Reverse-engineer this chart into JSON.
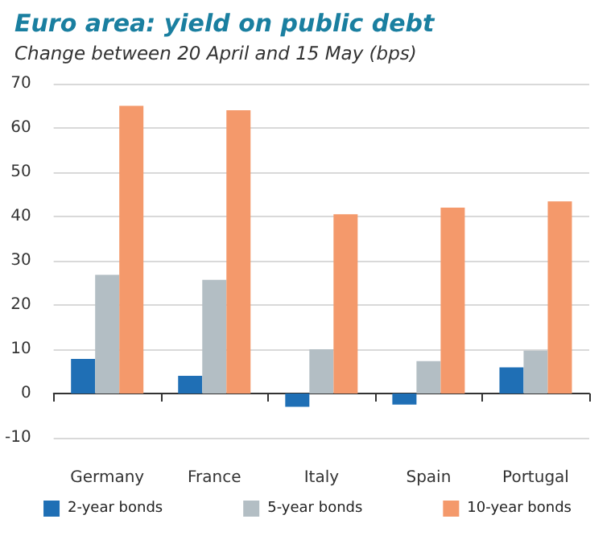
{
  "chart_data": {
    "type": "bar",
    "title": "Euro area: yield on public debt",
    "subtitle": "Change between 20 April and 15 May (bps)",
    "categories": [
      "Germany",
      "France",
      "Italy",
      "Spain",
      "Portugal"
    ],
    "series": [
      {
        "name": "2-year bonds",
        "color": "#1f6fb5",
        "values": [
          7.8,
          4,
          -3,
          -2.5,
          5.9
        ]
      },
      {
        "name": "5-year bonds",
        "color": "#b3bec4",
        "values": [
          26.8,
          25.7,
          10,
          7.3,
          9.7
        ]
      },
      {
        "name": "10-year bonds",
        "color": "#f4996b",
        "values": [
          65,
          64,
          40.5,
          42,
          43.4
        ]
      }
    ],
    "ylim": [
      -10,
      70
    ],
    "yticks": [
      -10,
      0,
      10,
      20,
      30,
      40,
      50,
      60,
      70
    ],
    "grid": "y",
    "legend": "bottom"
  }
}
